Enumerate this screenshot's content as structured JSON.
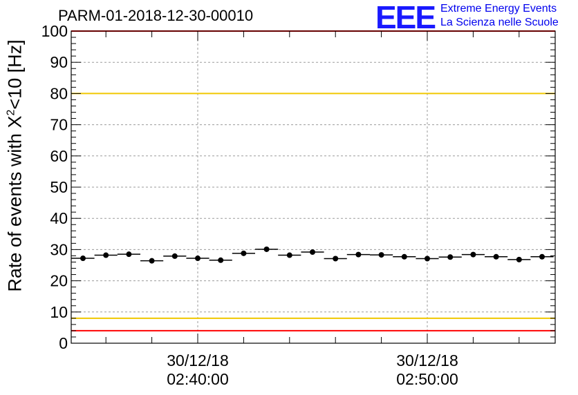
{
  "title": "PARM-01-2018-12-30-00010",
  "logo": {
    "mark": "EEE",
    "line1": "Extreme Energy Events",
    "line2": "La Scienza nelle Scuole",
    "color": "#1a1aff"
  },
  "chart_data": {
    "type": "scatter",
    "title": "PARM-01-2018-12-30-00010",
    "ylabel": {
      "pre": "Rate of events with X",
      "sup": "2",
      "post": "<10 [Hz]"
    },
    "xlabel": "",
    "ylim": [
      0,
      100
    ],
    "y_ticks": [
      0,
      10,
      20,
      30,
      40,
      50,
      60,
      70,
      80,
      90,
      100
    ],
    "x_tick_labels": [
      {
        "date": "30/12/18",
        "time": "02:40:00"
      },
      {
        "date": "30/12/18",
        "time": "02:50:00"
      }
    ],
    "grid": true,
    "series": [
      {
        "marker": "circle",
        "error_bars": "horizontal",
        "x": [
          "02:35",
          "02:36",
          "02:37",
          "02:38",
          "02:39",
          "02:40",
          "02:41",
          "02:42",
          "02:43",
          "02:44",
          "02:45",
          "02:46",
          "02:47",
          "02:48",
          "02:49",
          "02:50",
          "02:51",
          "02:52",
          "02:53",
          "02:54",
          "02:55"
        ],
        "values": [
          27.2,
          28.2,
          28.5,
          26.4,
          27.9,
          27.2,
          26.6,
          28.8,
          30.1,
          28.2,
          29.2,
          27.1,
          28.4,
          28.3,
          27.7,
          27.1,
          27.6,
          28.4,
          27.7,
          26.8,
          27.7
        ]
      }
    ],
    "reference_lines": [
      {
        "value": 80,
        "color": "#f0c800"
      },
      {
        "value": 8,
        "color": "#f0c800"
      },
      {
        "value": 100,
        "color": "#ff0000"
      },
      {
        "value": 4,
        "color": "#ff0000"
      }
    ]
  }
}
